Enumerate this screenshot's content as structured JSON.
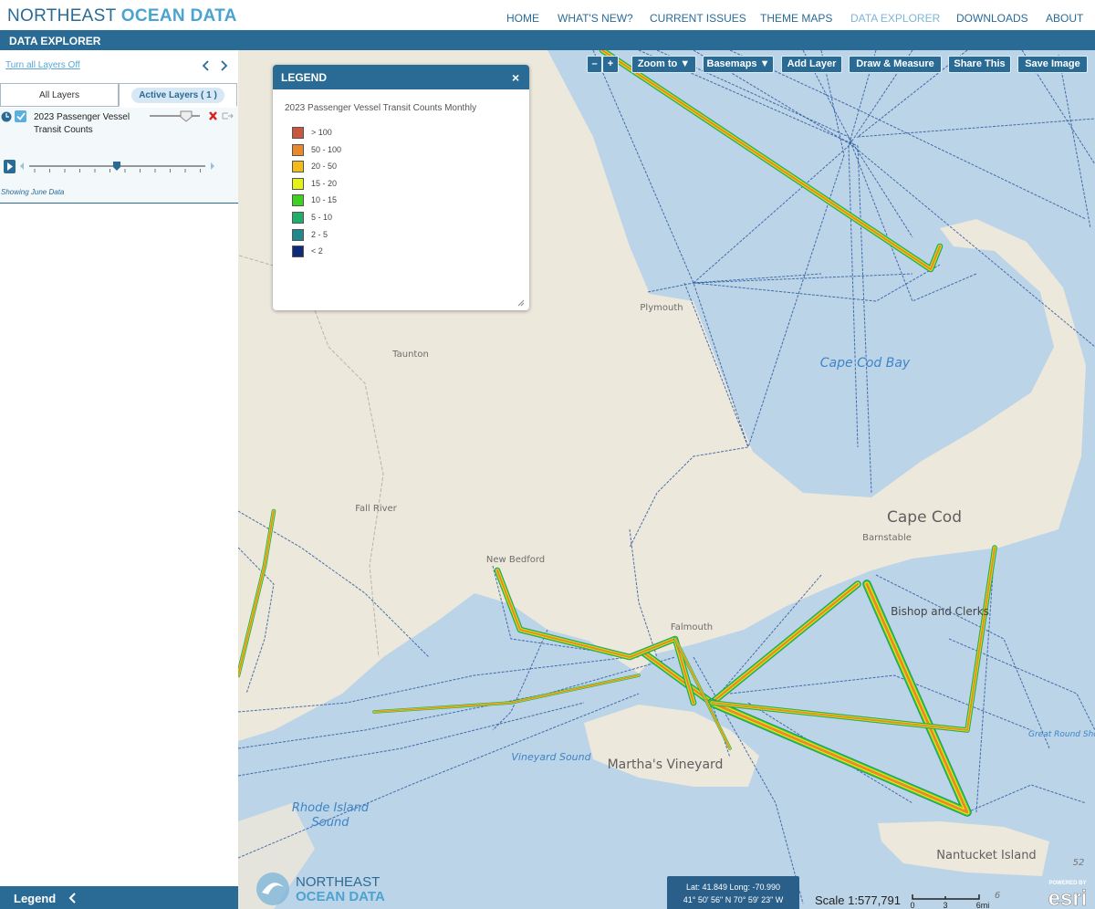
{
  "header": {
    "brand_primary": "NORTHEAST",
    "brand_secondary": "OCEAN DATA",
    "nav": [
      "HOME",
      "WHAT'S NEW?",
      "CURRENT ISSUES",
      "THEME MAPS",
      "DATA EXPLORER",
      "DOWNLOADS",
      "ABOUT"
    ]
  },
  "subheader": {
    "title": "DATA EXPLORER"
  },
  "sidebar": {
    "turn_off": "Turn all Layers Off",
    "tabs": [
      "All Layers",
      "Active Layers ( 1 )"
    ],
    "layer": {
      "name": "2023 Passenger Vessel Transit Counts",
      "status": "Showing June Data"
    },
    "footer": "Legend"
  },
  "toolbar": {
    "buttons": [
      "–",
      "+",
      "Zoom to ▼",
      "Basemaps ▼",
      "Add Layer",
      "Draw & Measure",
      "Share This",
      "Save Image"
    ]
  },
  "legend": {
    "title": "LEGEND",
    "close": "×",
    "subtitle": "2023 Passenger Vessel Transit Counts Monthly",
    "items": [
      {
        "label": "> 100",
        "color": "#c9573f"
      },
      {
        "label": "50 - 100",
        "color": "#e88a2c"
      },
      {
        "label": "20 - 50",
        "color": "#f2bb1a"
      },
      {
        "label": "15 - 20",
        "color": "#e3f21a"
      },
      {
        "label": "10 - 15",
        "color": "#3fd11f"
      },
      {
        "label": "5 - 10",
        "color": "#23ad6b"
      },
      {
        "label": "2 - 5",
        "color": "#23888c"
      },
      {
        "label": "< 2",
        "color": "#102a78"
      }
    ]
  },
  "map": {
    "labels": [
      "Plymouth",
      "Taunton",
      "Cape Cod Bay",
      "Cape Cod",
      "Barnstable",
      "Fall River",
      "New Bedford",
      "Falmouth",
      "Bishop and Clerks",
      "Martha's Vineyard",
      "Vineyard Sound",
      "Rhode Island",
      "Sound",
      "Nantucket Island",
      "Great Round Shoal",
      "52",
      "6"
    ]
  },
  "coordinates": {
    "decimal": "Lat: 41.849 Long: -70.990",
    "dms": "41° 50' 56\" N 70° 59' 23\" W"
  },
  "scale": {
    "text": "Scale 1:577,791",
    "ticks": [
      "0",
      "3",
      "6mi"
    ]
  },
  "logo": {
    "line1": "NORTHEAST",
    "line2": "OCEAN DATA"
  },
  "esri": {
    "powered": "POWERED BY",
    "name": "esri"
  }
}
